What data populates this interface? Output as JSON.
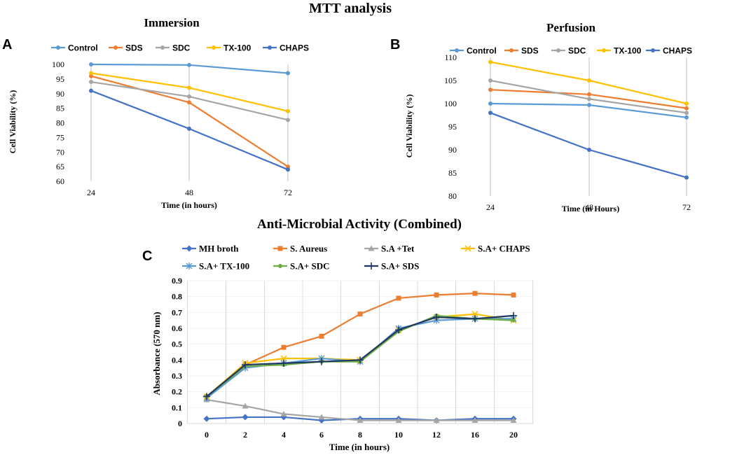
{
  "page_title": "MTT analysis",
  "chart_data": [
    {
      "panel": "A",
      "type": "line",
      "title": "Immersion",
      "xlabel": "Time (in hours)",
      "ylabel": "Cell Viability  (%)",
      "categories": [
        "24",
        "48",
        "72"
      ],
      "ylim": [
        60,
        100
      ],
      "yticks": [
        60,
        65,
        70,
        75,
        80,
        85,
        90,
        95,
        100
      ],
      "grid": "vertical",
      "legend": "top",
      "series": [
        {
          "name": "Control",
          "color": "#5B9BD5",
          "marker": "circle",
          "values": [
            100,
            99.8,
            97
          ]
        },
        {
          "name": "SDS",
          "color": "#ED7D31",
          "marker": "circle",
          "values": [
            96,
            87,
            65
          ]
        },
        {
          "name": "SDC",
          "color": "#A5A5A5",
          "marker": "circle",
          "values": [
            94,
            89,
            81
          ]
        },
        {
          "name": "TX-100",
          "color": "#FFC000",
          "marker": "circle",
          "values": [
            97,
            92,
            84
          ]
        },
        {
          "name": "CHAPS",
          "color": "#4472C4",
          "marker": "circle",
          "values": [
            91,
            78,
            64
          ]
        }
      ]
    },
    {
      "panel": "B",
      "type": "line",
      "title": "Perfusion",
      "xlabel": "Time (in Hours)",
      "ylabel": "Cell Viability  (%)",
      "categories": [
        "24",
        "48",
        "72"
      ],
      "ylim": [
        80,
        110
      ],
      "yticks": [
        80,
        85,
        90,
        95,
        100,
        105,
        110
      ],
      "grid": "vertical",
      "legend": "top",
      "series": [
        {
          "name": "Control",
          "color": "#5B9BD5",
          "marker": "circle",
          "values": [
            100,
            99.7,
            97
          ]
        },
        {
          "name": "SDS",
          "color": "#ED7D31",
          "marker": "circle",
          "values": [
            103,
            102,
            99
          ]
        },
        {
          "name": "SDC",
          "color": "#A5A5A5",
          "marker": "circle",
          "values": [
            105,
            101,
            98
          ]
        },
        {
          "name": "TX-100",
          "color": "#FFC000",
          "marker": "circle",
          "values": [
            109,
            105,
            100
          ]
        },
        {
          "name": "CHAPS",
          "color": "#4472C4",
          "marker": "circle",
          "values": [
            98,
            90,
            84
          ]
        }
      ]
    },
    {
      "panel": "C",
      "type": "line",
      "title": "Anti-Microbial Activity (Combined)",
      "xlabel": "Time (in hours)",
      "ylabel": "Absorbance  (570 nm)",
      "categories": [
        "0",
        "2",
        "4",
        "6",
        "8",
        "10",
        "12",
        "16",
        "20"
      ],
      "ylim": [
        0,
        0.9
      ],
      "yticks": [
        "0",
        "0.1",
        "0.2",
        "0.3",
        "0.4",
        "0.5",
        "0.6",
        "0.7",
        "0.8",
        "0.9"
      ],
      "grid": "vertical",
      "legend": "top",
      "series": [
        {
          "name": "MH broth",
          "color": "#4472C4",
          "marker": "diamond",
          "values": [
            0.03,
            0.04,
            0.04,
            0.02,
            0.03,
            0.03,
            0.02,
            0.03,
            0.03
          ]
        },
        {
          "name": "S. Aureus",
          "color": "#ED7D31",
          "marker": "square",
          "values": [
            0.17,
            0.37,
            0.48,
            0.55,
            0.69,
            0.79,
            0.81,
            0.82,
            0.81
          ]
        },
        {
          "name": "S.A +Tet",
          "color": "#A5A5A5",
          "marker": "triangle",
          "values": [
            0.15,
            0.11,
            0.06,
            0.04,
            0.02,
            0.02,
            0.02,
            0.02,
            0.02
          ]
        },
        {
          "name": "S.A+ CHAPS",
          "color": "#FFC000",
          "marker": "x",
          "values": [
            0.17,
            0.38,
            0.41,
            0.41,
            0.4,
            0.59,
            0.67,
            0.69,
            0.65
          ]
        },
        {
          "name": "S.A+ TX-100",
          "color": "#5B9BD5",
          "marker": "star",
          "values": [
            0.16,
            0.35,
            0.38,
            0.41,
            0.39,
            0.6,
            0.65,
            0.66,
            0.66
          ]
        },
        {
          "name": "S.A+ SDC",
          "color": "#70AD47",
          "marker": "circle",
          "values": [
            0.17,
            0.36,
            0.37,
            0.39,
            0.39,
            0.58,
            0.68,
            0.66,
            0.65
          ]
        },
        {
          "name": "S.A+ SDS",
          "color": "#1F3864",
          "marker": "plus",
          "values": [
            0.17,
            0.37,
            0.38,
            0.39,
            0.4,
            0.59,
            0.67,
            0.66,
            0.68
          ]
        }
      ]
    }
  ]
}
